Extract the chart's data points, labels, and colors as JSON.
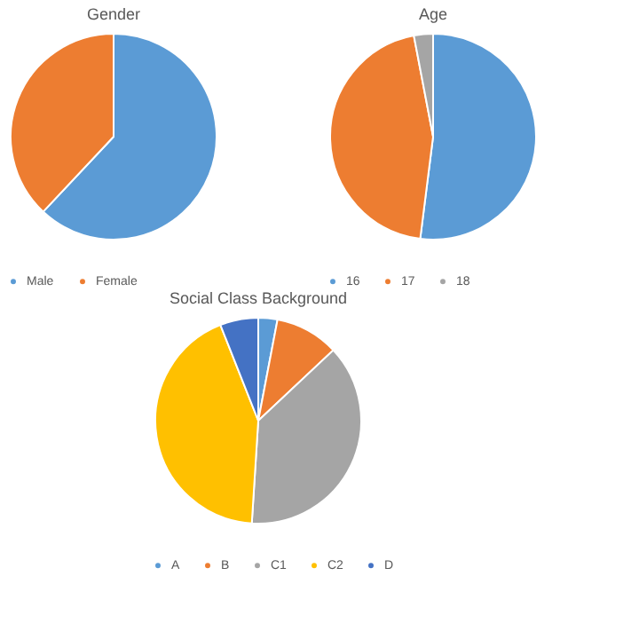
{
  "chart_data": [
    {
      "type": "pie",
      "title": "Gender",
      "categories": [
        "Male",
        "Female"
      ],
      "values": [
        62,
        38
      ],
      "colors": [
        "#5b9bd5",
        "#ed7d31"
      ],
      "legend": "bottom"
    },
    {
      "type": "pie",
      "title": "Age",
      "categories": [
        "16",
        "17",
        "18"
      ],
      "values": [
        52,
        45,
        3
      ],
      "colors": [
        "#5b9bd5",
        "#ed7d31",
        "#a5a5a5"
      ],
      "legend": "bottom"
    },
    {
      "type": "pie",
      "title": "Social Class Background",
      "categories": [
        "A",
        "B",
        "C1",
        "C2",
        "D"
      ],
      "values": [
        3,
        10,
        38,
        43,
        6
      ],
      "colors": [
        "#5b9bd5",
        "#ed7d31",
        "#a5a5a5",
        "#ffc000",
        "#4472c4"
      ],
      "legend": "bottom"
    }
  ]
}
